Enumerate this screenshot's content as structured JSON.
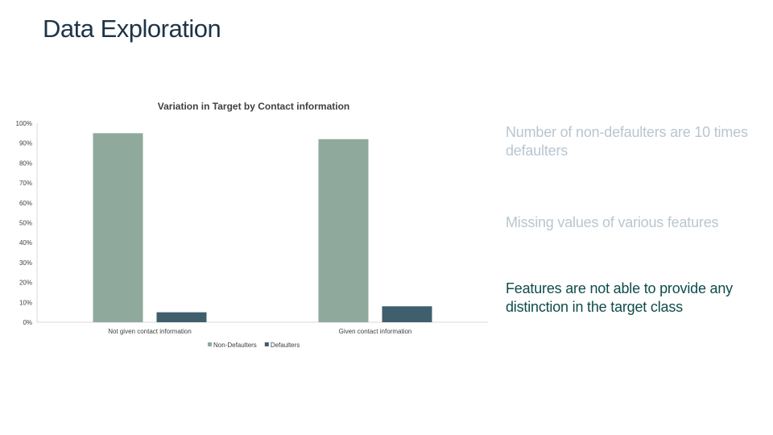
{
  "slide": {
    "title": "Data Exploration",
    "bullets": [
      "Number of non-defaulters are 10 times defaulters",
      "Missing values of various features",
      "Features are not able to provide any distinction in the target class"
    ]
  },
  "colors": {
    "non_defaulters": "#8faa9c",
    "defaulters": "#3f5f6d",
    "muted_text": "#b9c6cf",
    "highlight_text": "#0f4c4a"
  },
  "chart_data": {
    "type": "bar",
    "title": "Variation in Target by Contact information",
    "categories": [
      "Not given contact information",
      "Given contact information"
    ],
    "series": [
      {
        "name": "Non-Defaulters",
        "values": [
          95,
          92
        ]
      },
      {
        "name": "Defaulters",
        "values": [
          5,
          8
        ]
      }
    ],
    "ylim": [
      0,
      100
    ],
    "yticks": [
      "0%",
      "10%",
      "20%",
      "30%",
      "40%",
      "50%",
      "60%",
      "70%",
      "80%",
      "90%",
      "100%"
    ],
    "xlabel": "",
    "ylabel": "",
    "grid": false,
    "legend": "bottom"
  }
}
